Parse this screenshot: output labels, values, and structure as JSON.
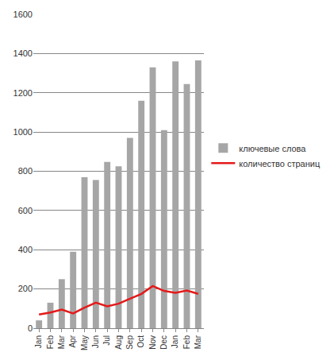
{
  "chart_data": {
    "type": "bar",
    "categories": [
      "Jan",
      "Feb",
      "Mar",
      "Apr",
      "May",
      "Jun",
      "Jul",
      "Aug",
      "Sep",
      "Oct",
      "Nov",
      "Dec",
      "Jan",
      "Feb",
      "Mar"
    ],
    "series": [
      {
        "name": "ключевые слова",
        "type": "bar",
        "color": "#a6a6a6",
        "values": [
          40,
          130,
          250,
          390,
          770,
          755,
          848,
          825,
          970,
          1160,
          1330,
          1010,
          1360,
          1245,
          1365
        ]
      },
      {
        "name": "количество страниц",
        "type": "line",
        "color": "#e41a1a",
        "values": [
          70,
          80,
          95,
          75,
          105,
          130,
          112,
          125,
          150,
          175,
          215,
          190,
          180,
          192,
          175
        ]
      }
    ],
    "ylim": [
      0,
      1600
    ],
    "yticks": [
      0,
      200,
      400,
      600,
      800,
      1000,
      1200,
      1400,
      1600
    ],
    "grid": true,
    "legend": "right"
  }
}
